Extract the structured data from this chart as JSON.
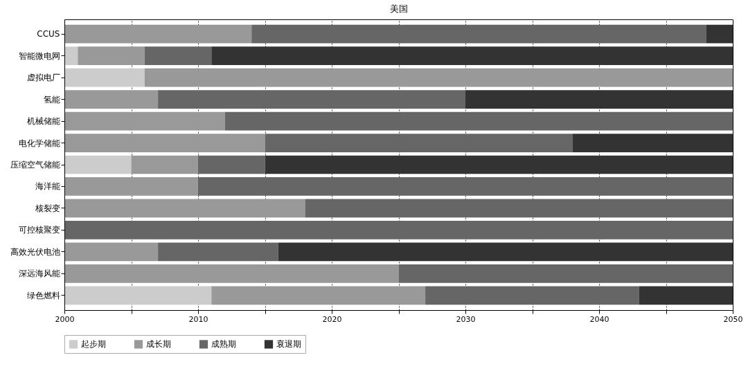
{
  "chart_data": {
    "type": "bar",
    "title": "美国",
    "orientation": "horizontal",
    "categories": [
      "CCUS",
      "智能微电网",
      "虚拟电厂",
      "氢能",
      "机械储能",
      "电化学储能",
      "压缩空气储能",
      "海洋能",
      "核裂变",
      "可控核聚变",
      "高效光伏电池",
      "深远海风能",
      "绿色燃料"
    ],
    "series": [
      {
        "name": "起步期",
        "color": "#cccccc",
        "base": [
          null,
          2000,
          2000,
          null,
          null,
          null,
          2000,
          null,
          null,
          null,
          null,
          null,
          2000
        ],
        "values": [
          null,
          1,
          6,
          null,
          null,
          null,
          5,
          null,
          null,
          null,
          null,
          null,
          11
        ]
      },
      {
        "name": "成长期",
        "color": "#999999",
        "base": [
          2000,
          2001,
          2006,
          2000,
          2000,
          2000,
          2005,
          2000,
          2000,
          null,
          2000,
          2000,
          2011
        ],
        "values": [
          14,
          5,
          44,
          7,
          12,
          15,
          5,
          10,
          18,
          null,
          7,
          25,
          16
        ]
      },
      {
        "name": "成熟期",
        "color": "#666666",
        "base": [
          2014,
          2006,
          null,
          2007,
          2012,
          2015,
          2010,
          2010,
          2018,
          2000,
          2007,
          2025,
          2027
        ],
        "values": [
          34,
          5,
          null,
          23,
          38,
          23,
          5,
          40,
          32,
          50,
          9,
          25,
          16
        ]
      },
      {
        "name": "衰退期",
        "color": "#333333",
        "base": [
          2048,
          2011,
          null,
          2030,
          null,
          2038,
          2015,
          null,
          null,
          null,
          2016,
          null,
          2043
        ],
        "values": [
          2,
          39,
          null,
          20,
          null,
          12,
          35,
          null,
          null,
          null,
          34,
          null,
          7
        ]
      }
    ],
    "xlim": [
      2000,
      2050
    ],
    "xticks": [
      2000,
      {
        "value": 2005,
        "label": null
      },
      2010,
      {
        "value": 2015,
        "label": null
      },
      2020,
      {
        "value": 2025,
        "label": null
      },
      2030,
      {
        "value": 2035,
        "label": null
      },
      2040,
      {
        "value": 2045,
        "label": null
      },
      2050
    ],
    "grid": "x",
    "legend": "bottom"
  }
}
